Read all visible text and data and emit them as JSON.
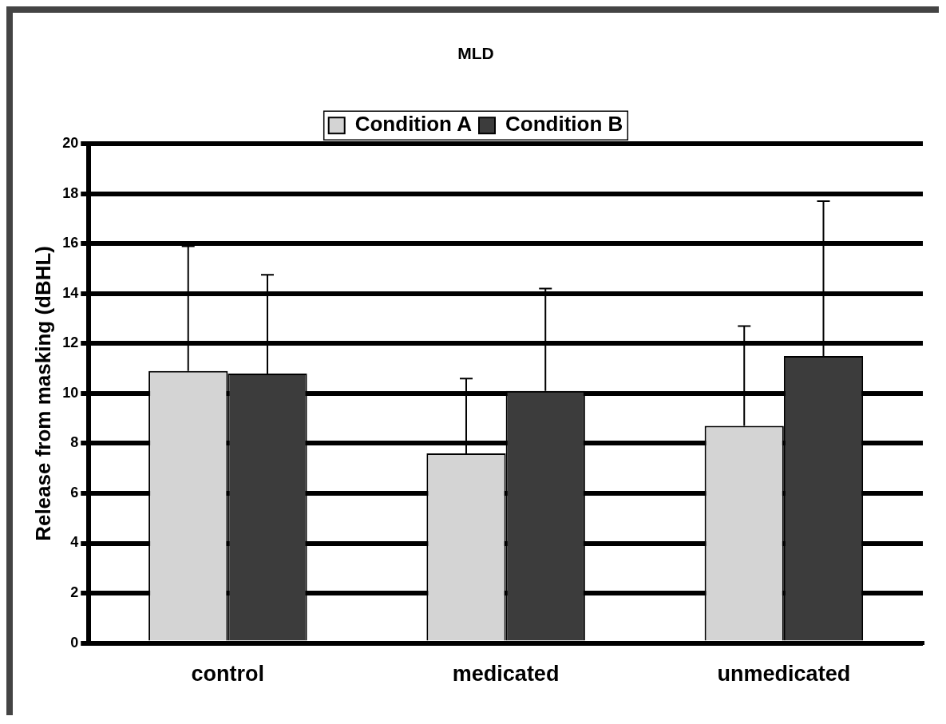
{
  "chart_data": {
    "type": "bar",
    "title": "MLD",
    "ylabel": "Release from masking (dBHL)",
    "categories": [
      "control",
      "medicated",
      "unmedicated"
    ],
    "series": [
      {
        "name": "Condition A",
        "color": "#d4d4d4",
        "values": [
          10.9,
          7.6,
          8.7
        ],
        "errors": [
          [
            10.9,
            15.9
          ],
          [
            7.6,
            10.6
          ],
          [
            8.7,
            12.7
          ]
        ]
      },
      {
        "name": "Condition B",
        "color": "#3c3c3c",
        "values": [
          10.8,
          10.1,
          11.5
        ],
        "errors": [
          [
            10.8,
            14.75
          ],
          [
            10.1,
            14.2
          ],
          [
            11.5,
            17.7
          ]
        ]
      }
    ],
    "ylim": [
      0,
      20
    ],
    "yticks": [
      0,
      2,
      4,
      6,
      8,
      10,
      12,
      14,
      16,
      18,
      20
    ],
    "grid": "y",
    "legend": "top"
  }
}
